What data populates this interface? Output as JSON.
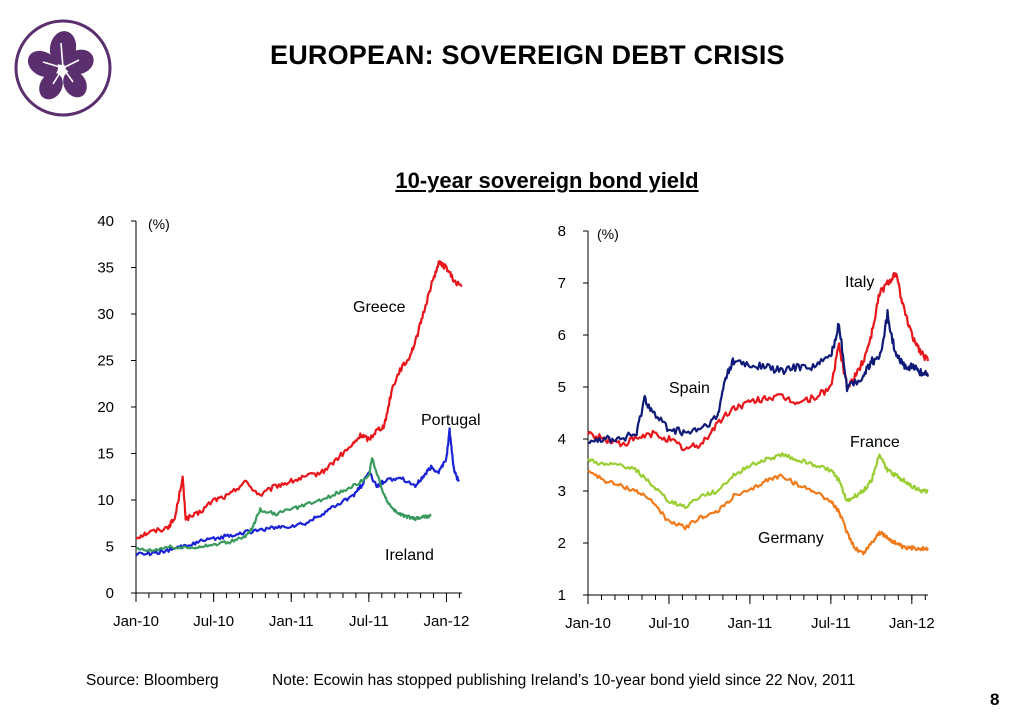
{
  "slide": {
    "title": "EUROPEAN: SOVEREIGN DEBT CRISIS",
    "chart_heading": "10-year sovereign bond yield",
    "source": "Source: Bloomberg",
    "note": "Note:  Ecowin has stopped publishing Ireland’s 10-year bond yield since 22 Nov, 2011",
    "page_number": "8"
  },
  "colors": {
    "logo_purple": "#5b2e6e",
    "axis": "#000000"
  },
  "chart_data": [
    {
      "type": "line",
      "unit_label": "(%)",
      "ylim": [
        0,
        40
      ],
      "y_ticks": [
        0,
        5,
        10,
        15,
        20,
        25,
        30,
        35,
        40
      ],
      "x_tick_labels": [
        "Jan-10",
        "Jul-10",
        "Jan-11",
        "Jul-11",
        "Jan-12"
      ],
      "x_ticks": [
        2010.0,
        2010.5,
        2011.0,
        2011.5,
        2012.0
      ],
      "xlim": [
        2010.0,
        2012.1
      ],
      "grid": false,
      "series": [
        {
          "name": "Greece",
          "color": "#e8161b",
          "x": [
            2010.0,
            2010.08,
            2010.2,
            2010.25,
            2010.3,
            2010.32,
            2010.4,
            2010.5,
            2010.6,
            2010.7,
            2010.8,
            2010.9,
            2011.0,
            2011.1,
            2011.2,
            2011.3,
            2011.4,
            2011.45,
            2011.5,
            2011.55,
            2011.6,
            2011.65,
            2011.7,
            2011.75,
            2011.8,
            2011.85,
            2011.9,
            2011.95,
            2012.0,
            2012.05,
            2012.1
          ],
          "values": [
            6.0,
            6.5,
            7.0,
            8.0,
            12.5,
            8.0,
            8.5,
            10.0,
            10.5,
            12.0,
            10.5,
            11.5,
            12.0,
            12.5,
            13.0,
            14.5,
            16.0,
            17.0,
            16.5,
            17.5,
            18.0,
            22.0,
            24.0,
            25.0,
            27.0,
            30.0,
            33.0,
            35.5,
            35.0,
            33.5,
            33.0
          ]
        },
        {
          "name": "Portugal",
          "color": "#1a22d6",
          "x": [
            2010.0,
            2010.1,
            2010.2,
            2010.3,
            2010.4,
            2010.5,
            2010.6,
            2010.7,
            2010.8,
            2010.9,
            2011.0,
            2011.1,
            2011.2,
            2011.3,
            2011.4,
            2011.45,
            2011.5,
            2011.55,
            2011.6,
            2011.7,
            2011.8,
            2011.85,
            2011.9,
            2011.95,
            2012.0,
            2012.02,
            2012.05,
            2012.08
          ],
          "values": [
            4.2,
            4.3,
            4.5,
            5.0,
            5.5,
            5.8,
            6.2,
            6.5,
            6.8,
            7.0,
            7.2,
            7.5,
            8.5,
            9.5,
            10.5,
            11.5,
            13.0,
            11.5,
            12.0,
            12.5,
            11.5,
            12.5,
            13.5,
            13.0,
            14.5,
            17.5,
            13.0,
            12.0
          ]
        },
        {
          "name": "Ireland",
          "color": "#3a9a5e",
          "x": [
            2010.0,
            2010.1,
            2010.2,
            2010.3,
            2010.4,
            2010.5,
            2010.6,
            2010.7,
            2010.75,
            2010.8,
            2010.9,
            2011.0,
            2011.1,
            2011.2,
            2011.3,
            2011.4,
            2011.5,
            2011.52,
            2011.6,
            2011.65,
            2011.7,
            2011.75,
            2011.8,
            2011.85,
            2011.9
          ],
          "values": [
            4.8,
            4.6,
            5.0,
            4.8,
            5.0,
            5.2,
            5.5,
            6.0,
            7.0,
            9.0,
            8.5,
            9.0,
            9.5,
            10.0,
            10.8,
            11.5,
            12.5,
            14.5,
            10.5,
            9.0,
            8.5,
            8.2,
            8.0,
            8.2,
            8.3
          ]
        }
      ]
    },
    {
      "type": "line",
      "unit_label": "(%)",
      "ylim": [
        1,
        8
      ],
      "y_ticks": [
        1,
        2,
        3,
        4,
        5,
        6,
        7,
        8
      ],
      "x_tick_labels": [
        "Jan-10",
        "Jul-10",
        "Jan-11",
        "Jul-11",
        "Jan-12"
      ],
      "x_ticks": [
        2010.0,
        2010.5,
        2011.0,
        2011.5,
        2012.0
      ],
      "xlim": [
        2010.0,
        2012.1
      ],
      "grid": false,
      "series": [
        {
          "name": "Italy",
          "color": "#e8161b",
          "x": [
            2010.0,
            2010.1,
            2010.2,
            2010.3,
            2010.4,
            2010.5,
            2010.6,
            2010.7,
            2010.8,
            2010.9,
            2011.0,
            2011.1,
            2011.2,
            2011.3,
            2011.4,
            2011.5,
            2011.55,
            2011.6,
            2011.65,
            2011.7,
            2011.75,
            2011.8,
            2011.85,
            2011.9,
            2011.95,
            2012.0,
            2012.05,
            2012.1
          ],
          "values": [
            4.1,
            4.0,
            3.9,
            4.0,
            4.1,
            4.0,
            3.8,
            3.9,
            4.3,
            4.6,
            4.7,
            4.8,
            4.8,
            4.7,
            4.8,
            5.0,
            5.8,
            5.0,
            5.2,
            5.5,
            6.0,
            6.8,
            7.0,
            7.2,
            6.5,
            6.0,
            5.7,
            5.5
          ]
        },
        {
          "name": "Spain",
          "color": "#0f1a78",
          "x": [
            2010.0,
            2010.1,
            2010.2,
            2010.3,
            2010.35,
            2010.4,
            2010.5,
            2010.6,
            2010.7,
            2010.8,
            2010.85,
            2010.9,
            2011.0,
            2011.1,
            2011.2,
            2011.3,
            2011.4,
            2011.5,
            2011.55,
            2011.6,
            2011.7,
            2011.75,
            2011.8,
            2011.85,
            2011.9,
            2011.95,
            2012.0,
            2012.05,
            2012.1
          ],
          "values": [
            4.0,
            4.0,
            4.0,
            4.1,
            4.8,
            4.5,
            4.2,
            4.1,
            4.2,
            4.4,
            5.2,
            5.5,
            5.4,
            5.4,
            5.3,
            5.4,
            5.4,
            5.6,
            6.2,
            5.0,
            5.2,
            5.5,
            5.5,
            6.4,
            5.6,
            5.4,
            5.4,
            5.3,
            5.2
          ]
        },
        {
          "name": "France",
          "color": "#9acd32",
          "x": [
            2010.0,
            2010.1,
            2010.2,
            2010.3,
            2010.4,
            2010.5,
            2010.6,
            2010.7,
            2010.8,
            2010.9,
            2011.0,
            2011.1,
            2011.2,
            2011.3,
            2011.4,
            2011.5,
            2011.55,
            2011.6,
            2011.65,
            2011.7,
            2011.75,
            2011.8,
            2011.85,
            2011.9,
            2011.95,
            2012.0,
            2012.05,
            2012.1
          ],
          "values": [
            3.6,
            3.5,
            3.5,
            3.4,
            3.1,
            2.8,
            2.7,
            2.9,
            3.0,
            3.3,
            3.5,
            3.6,
            3.7,
            3.6,
            3.5,
            3.4,
            3.2,
            2.8,
            2.9,
            3.0,
            3.2,
            3.7,
            3.4,
            3.3,
            3.2,
            3.1,
            3.0,
            3.0
          ]
        },
        {
          "name": "Germany",
          "color": "#f07a1a",
          "x": [
            2010.0,
            2010.1,
            2010.2,
            2010.3,
            2010.4,
            2010.5,
            2010.6,
            2010.7,
            2010.8,
            2010.9,
            2011.0,
            2011.1,
            2011.2,
            2011.3,
            2011.4,
            2011.5,
            2011.55,
            2011.6,
            2011.65,
            2011.7,
            2011.75,
            2011.8,
            2011.85,
            2011.9,
            2011.95,
            2012.0,
            2012.05,
            2012.1
          ],
          "values": [
            3.4,
            3.2,
            3.1,
            3.0,
            2.8,
            2.4,
            2.3,
            2.5,
            2.6,
            2.9,
            3.0,
            3.2,
            3.3,
            3.1,
            3.0,
            2.8,
            2.6,
            2.2,
            1.9,
            1.8,
            2.0,
            2.2,
            2.1,
            2.0,
            1.9,
            1.9,
            1.9,
            1.9
          ]
        }
      ]
    }
  ]
}
